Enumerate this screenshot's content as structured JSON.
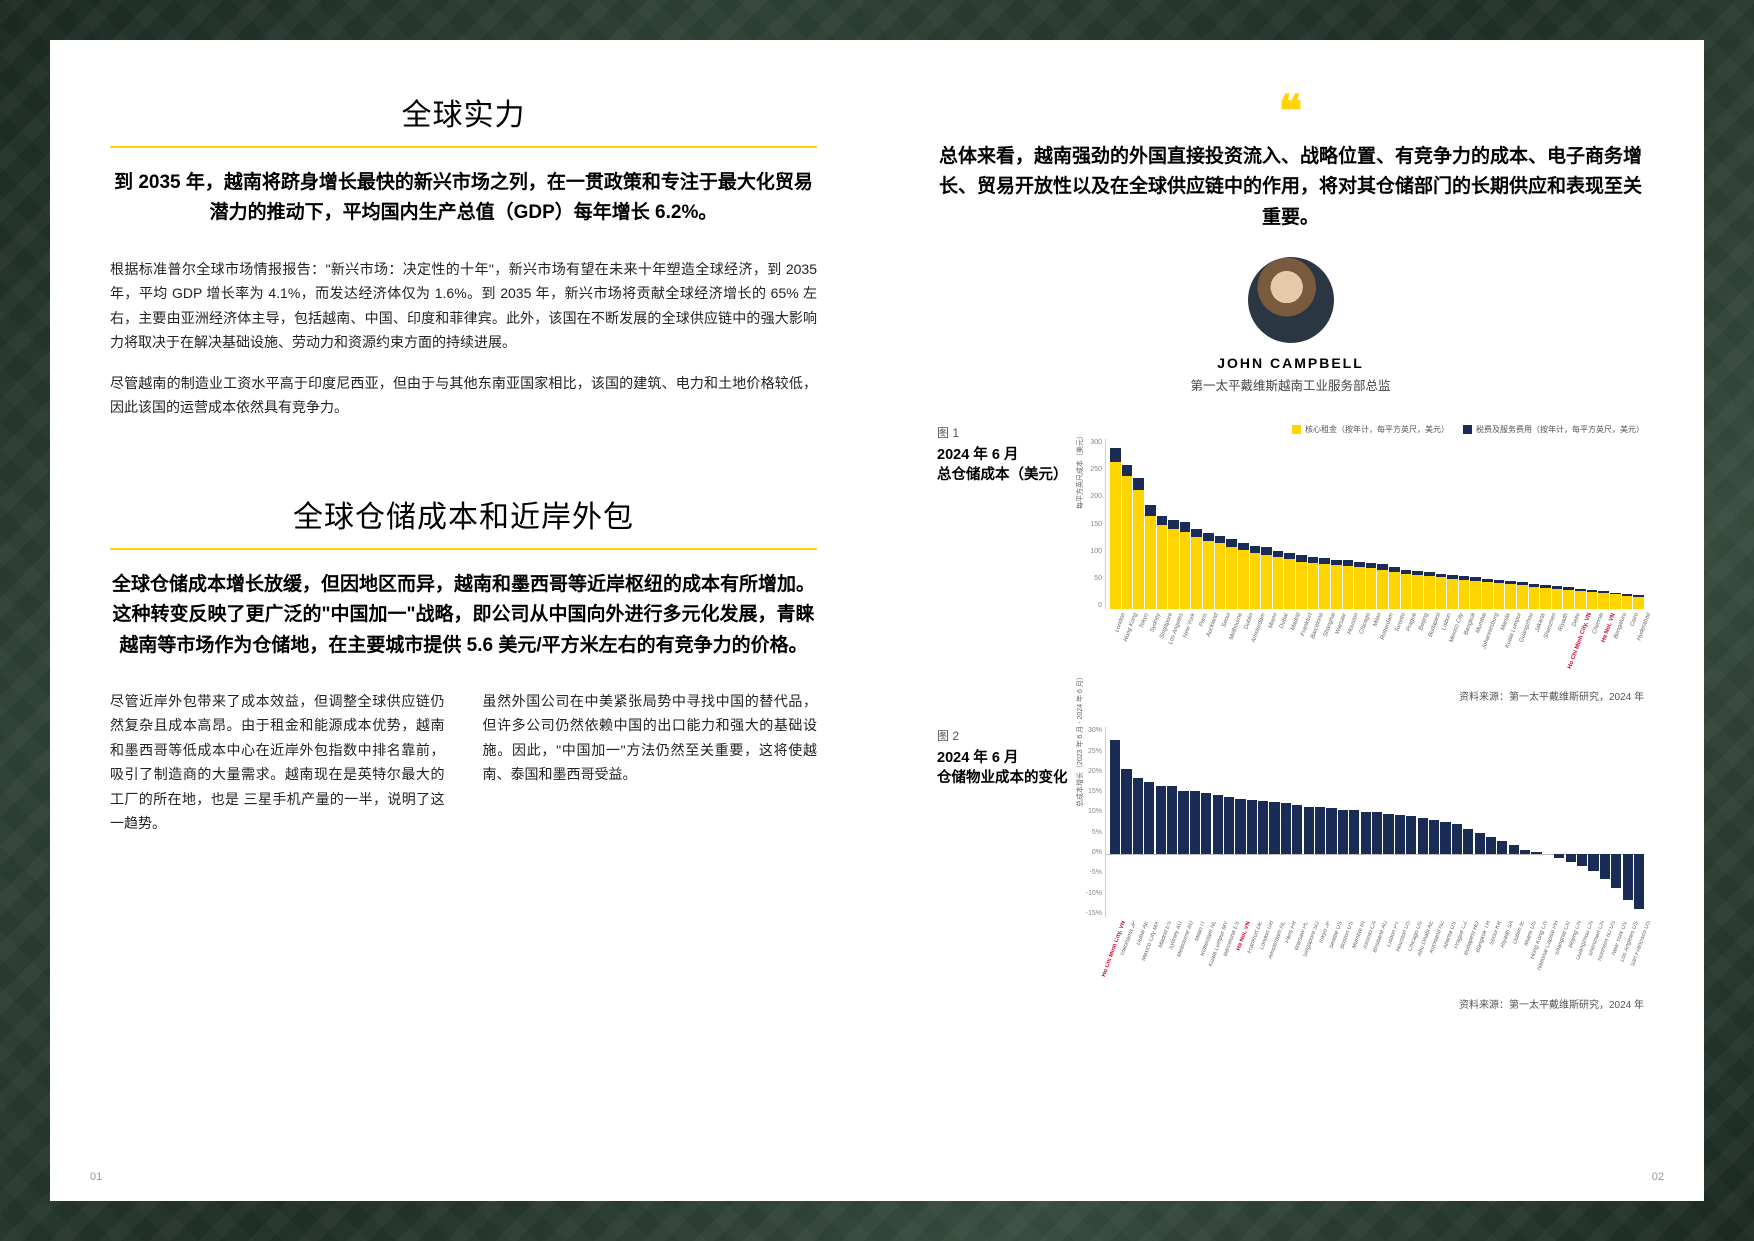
{
  "left": {
    "section1": {
      "title": "全球实力",
      "lede": "到 2035 年，越南将跻身增长最快的新兴市场之列，在一贯政策和专注于最大化贸易潜力的推动下，平均国内生产总值（GDP）每年增长 6.2%。",
      "p1": "根据标准普尔全球市场情报报告：\"新兴市场：决定性的十年\"，新兴市场有望在未来十年塑造全球经济，到 2035 年，平均 GDP 增长率为 4.1%，而发达经济体仅为 1.6%。到 2035 年，新兴市场将贡献全球经济增长的 65% 左右，主要由亚洲经济体主导，包括越南、中国、印度和菲律宾。此外，该国在不断发展的全球供应链中的强大影响力将取决于在解决基础设施、劳动力和资源约束方面的持续进展。",
      "p2": "尽管越南的制造业工资水平高于印度尼西亚，但由于与其他东南亚国家相比，该国的建筑、电力和土地价格较低，因此该国的运营成本依然具有竞争力。"
    },
    "section2": {
      "title": "全球仓储成本和近岸外包",
      "lede": "全球仓储成本增长放缓，但因地区而异，越南和墨西哥等近岸枢纽的成本有所增加。这种转变反映了更广泛的\"中国加一\"战略，即公司从中国向外进行多元化发展，青睐越南等市场作为仓储地，在主要城市提供 5.6 美元/平方米左右的有竞争力的价格。",
      "colA": "尽管近岸外包带来了成本效益，但调整全球供应链仍然复杂且成本高昂。由于租金和能源成本优势，越南和墨西哥等低成本中心在近岸外包指数中排名靠前，吸引了制造商的大量需求。越南现在是英特尔最大的工厂的所在地，也是 三星手机产量的一半，说明了这一趋势。",
      "colB": "虽然外国公司在中美紧张局势中寻找中国的替代品，但许多公司仍然依赖中国的出口能力和强大的基础设施。因此，\"中国加一\"方法仍然至关重要，这将使越南、泰国和墨西哥受益。"
    },
    "pageNum": "01"
  },
  "right": {
    "quote": "总体来看，越南强劲的外国直接投资流入、战略位置、有竞争力的成本、电子商务增长、贸易开放性以及在全球供应链中的作用，将对其仓储部门的长期供应和表现至关重要。",
    "author": {
      "name": "JOHN CAMPBELL",
      "title": "第一太平戴维斯越南工业服务部总监"
    },
    "fig1": {
      "num": "图 1",
      "title": "2024 年 6 月\n总仓储成本（美元）",
      "legend": [
        {
          "label": "核心租金（按年计，每平方英尺，美元）",
          "color": "#ffd400"
        },
        {
          "label": "税费及服务费用（按年计，每平方英尺，美元）",
          "color": "#1a2b55"
        }
      ],
      "yAxisLabel": "每平方英尺成本（美元）",
      "yMax": 300,
      "yTicks": [
        "300",
        "250",
        "200",
        "150",
        "100",
        "50",
        "0"
      ],
      "bars": [
        {
          "l": "London",
          "r": 260,
          "s": 25
        },
        {
          "l": "Hong Kong",
          "r": 235,
          "s": 20
        },
        {
          "l": "Tokyo",
          "r": 210,
          "s": 22
        },
        {
          "l": "Sydney",
          "r": 165,
          "s": 18
        },
        {
          "l": "Singapore",
          "r": 148,
          "s": 17
        },
        {
          "l": "Los Angeles",
          "r": 142,
          "s": 16
        },
        {
          "l": "New York",
          "r": 136,
          "s": 18
        },
        {
          "l": "Paris",
          "r": 128,
          "s": 14
        },
        {
          "l": "Auckland",
          "r": 120,
          "s": 14
        },
        {
          "l": "Seoul",
          "r": 116,
          "s": 13
        },
        {
          "l": "Melbourne",
          "r": 110,
          "s": 13
        },
        {
          "l": "Dublin",
          "r": 104,
          "s": 12
        },
        {
          "l": "Amsterdam",
          "r": 100,
          "s": 12
        },
        {
          "l": "Miami",
          "r": 96,
          "s": 13
        },
        {
          "l": "Dubai",
          "r": 92,
          "s": 11
        },
        {
          "l": "Madrid",
          "r": 88,
          "s": 11
        },
        {
          "l": "Frankfurt",
          "r": 84,
          "s": 11
        },
        {
          "l": "Barcelona",
          "r": 82,
          "s": 10
        },
        {
          "l": "Shanghai",
          "r": 80,
          "s": 10
        },
        {
          "l": "Warsaw",
          "r": 78,
          "s": 9
        },
        {
          "l": "Houston",
          "r": 76,
          "s": 10
        },
        {
          "l": "Chicago",
          "r": 74,
          "s": 10
        },
        {
          "l": "Milan",
          "r": 72,
          "s": 9
        },
        {
          "l": "Rotterdam",
          "r": 70,
          "s": 9
        },
        {
          "l": "Toronto",
          "r": 66,
          "s": 9
        },
        {
          "l": "Prague",
          "r": 62,
          "s": 8
        },
        {
          "l": "Beijing",
          "r": 60,
          "s": 8
        },
        {
          "l": "Budapest",
          "r": 58,
          "s": 7
        },
        {
          "l": "Lisbon",
          "r": 56,
          "s": 7
        },
        {
          "l": "Mexico City",
          "r": 54,
          "s": 7
        },
        {
          "l": "Bangkok",
          "r": 52,
          "s": 7
        },
        {
          "l": "Mumbai",
          "r": 50,
          "s": 6
        },
        {
          "l": "Johannesburg",
          "r": 48,
          "s": 6
        },
        {
          "l": "Manila",
          "r": 46,
          "s": 6
        },
        {
          "l": "Kuala Lumpur",
          "r": 44,
          "s": 6
        },
        {
          "l": "Guangzhou",
          "r": 42,
          "s": 6
        },
        {
          "l": "Jakarta",
          "r": 40,
          "s": 5
        },
        {
          "l": "Shenzhen",
          "r": 38,
          "s": 5
        },
        {
          "l": "Riyadh",
          "r": 36,
          "s": 5
        },
        {
          "l": "Delhi",
          "r": 34,
          "s": 5
        },
        {
          "l": "Ho Chi Minh City, VN",
          "r": 32,
          "s": 4,
          "hl": true
        },
        {
          "l": "Chennai",
          "r": 30,
          "s": 4
        },
        {
          "l": "Ha Noi, VN",
          "r": 28,
          "s": 4,
          "hl": true
        },
        {
          "l": "Bengaluru",
          "r": 26,
          "s": 3
        },
        {
          "l": "Cairo",
          "r": 24,
          "s": 3
        },
        {
          "l": "Hyderabad",
          "r": 22,
          "s": 3
        }
      ],
      "source": "资料来源：第一太平戴维斯研究，2024 年"
    },
    "fig2": {
      "num": "图 2",
      "title": "2024 年 6 月\n仓储物业成本的变化",
      "yAxisLabel": "总成本增长（2023 年 6 月 - 2024 年 6 月）",
      "yMax": 30,
      "yMin": -15,
      "yTicks": [
        "30%",
        "25%",
        "20%",
        "15%",
        "10%",
        "5%",
        "0%",
        "-5%",
        "-10%",
        "-15%"
      ],
      "color": "#1a2b55",
      "bars": [
        {
          "l": "Ho Chi Minh City, VN",
          "v": 27,
          "hl": true
        },
        {
          "l": "Yokohama JP",
          "v": 20
        },
        {
          "l": "Dubai AE",
          "v": 18
        },
        {
          "l": "Mexico City MX",
          "v": 17
        },
        {
          "l": "Madrid ES",
          "v": 16
        },
        {
          "l": "Sydney AU",
          "v": 16
        },
        {
          "l": "Melbourne AU",
          "v": 15
        },
        {
          "l": "Milan IT",
          "v": 15
        },
        {
          "l": "Rotterdam NL",
          "v": 14.5
        },
        {
          "l": "Kuala Lumpur MY",
          "v": 14
        },
        {
          "l": "Barcelona ES",
          "v": 13.5
        },
        {
          "l": "Ha Noi, VN",
          "v": 13,
          "hl": true
        },
        {
          "l": "Frankfurt DE",
          "v": 12.8
        },
        {
          "l": "London GB",
          "v": 12.5
        },
        {
          "l": "Amsterdam NL",
          "v": 12.2
        },
        {
          "l": "Paris FR",
          "v": 12
        },
        {
          "l": "Warsaw PL",
          "v": 11.5
        },
        {
          "l": "Singapore SG",
          "v": 11.2
        },
        {
          "l": "Tokyo JP",
          "v": 11
        },
        {
          "l": "Seattle US",
          "v": 10.8
        },
        {
          "l": "Boston US",
          "v": 10.5
        },
        {
          "l": "Mumbai IN",
          "v": 10.3
        },
        {
          "l": "Toronto CA",
          "v": 10
        },
        {
          "l": "Brisbane AU",
          "v": 9.8
        },
        {
          "l": "Lisbon PT",
          "v": 9.5
        },
        {
          "l": "Houston US",
          "v": 9.2
        },
        {
          "l": "Chicago US",
          "v": 9
        },
        {
          "l": "Abu Dhabi AE",
          "v": 8.5
        },
        {
          "l": "Auckland NZ",
          "v": 8
        },
        {
          "l": "Atlanta US",
          "v": 7.5
        },
        {
          "l": "Prague CZ",
          "v": 7
        },
        {
          "l": "Budapest HU",
          "v": 6
        },
        {
          "l": "Bangkok TH",
          "v": 5
        },
        {
          "l": "Seoul KR",
          "v": 4
        },
        {
          "l": "Riyadh SA",
          "v": 3
        },
        {
          "l": "Dublin IE",
          "v": 2
        },
        {
          "l": "Miami US",
          "v": 1
        },
        {
          "l": "Hong Kong CN",
          "v": 0.5
        },
        {
          "l": "National Capital PH",
          "v": 0
        },
        {
          "l": "Shanghai CN",
          "v": -1
        },
        {
          "l": "Beijing CN",
          "v": -2
        },
        {
          "l": "Guangzhou CN",
          "v": -3
        },
        {
          "l": "Shenzhen CN",
          "v": -4
        },
        {
          "l": "Northern NJ US",
          "v": -6
        },
        {
          "l": "New York US",
          "v": -8
        },
        {
          "l": "Los Angeles US",
          "v": -11
        },
        {
          "l": "San Francisco US",
          "v": -13
        }
      ],
      "source": "资料来源：第一太平戴维斯研究，2024 年"
    },
    "pageNum": "02"
  }
}
